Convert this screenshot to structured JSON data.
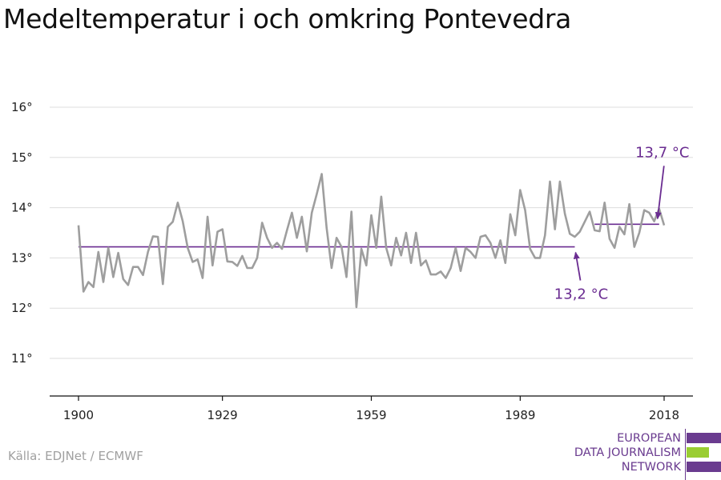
{
  "title": "Medeltemperatur i och omkring Pontevedra",
  "source": "Källa: EDJNet / ECMWF",
  "logo": {
    "lines": [
      "EUROPEAN",
      "DATA JOURNALISM",
      "NETWORK"
    ],
    "colors": {
      "purple": "#6a3b8f",
      "green": "#9acd32"
    }
  },
  "colors": {
    "series": "#9e9e9e",
    "average": "#6a2c91",
    "grid": "#dddddd",
    "axis": "#111111",
    "annotation": "#6a2c91"
  },
  "chart_data": {
    "type": "line",
    "title": "Medeltemperatur i och omkring Pontevedra",
    "xlabel": "",
    "ylabel": "",
    "xlim": [
      1900,
      2018
    ],
    "ylim": [
      10.3,
      16.2
    ],
    "x_ticks": [
      1900,
      1929,
      1959,
      1989,
      2018
    ],
    "y_ticks": [
      11,
      12,
      13,
      14,
      15,
      16
    ],
    "y_tick_labels": [
      "11°",
      "12°",
      "13°",
      "14°",
      "15°",
      "16°"
    ],
    "grid": true,
    "series": [
      {
        "x": [
          1900,
          1901,
          1902,
          1903,
          1904,
          1905,
          1906,
          1907,
          1908,
          1909,
          1910,
          1911,
          1912,
          1913,
          1914,
          1915,
          1916,
          1917,
          1918,
          1919,
          1920,
          1921,
          1922,
          1923,
          1924,
          1925,
          1926,
          1927,
          1928,
          1929,
          1930,
          1931,
          1932,
          1933,
          1934,
          1935,
          1936,
          1937,
          1938,
          1939,
          1940,
          1941,
          1942,
          1943,
          1944,
          1945,
          1946,
          1947,
          1948,
          1949,
          1950,
          1951,
          1952,
          1953,
          1954,
          1955,
          1956,
          1957,
          1958,
          1959,
          1960,
          1961,
          1962,
          1963,
          1964,
          1965,
          1966,
          1967,
          1968,
          1969,
          1970,
          1971,
          1972,
          1973,
          1974,
          1975,
          1976,
          1977,
          1978,
          1979,
          1980,
          1981,
          1982,
          1983,
          1984,
          1985,
          1986,
          1987,
          1988,
          1989,
          1990,
          1991,
          1992,
          1993,
          1994,
          1995,
          1996,
          1997,
          1998,
          1999,
          2000,
          2001,
          2002,
          2003,
          2004,
          2005,
          2006,
          2007,
          2008,
          2009,
          2010,
          2011,
          2012,
          2013,
          2014,
          2015,
          2016,
          2017,
          2018
        ],
        "values": [
          13.65,
          12.33,
          12.52,
          12.42,
          13.12,
          12.52,
          13.2,
          12.62,
          13.1,
          12.58,
          12.46,
          12.82,
          12.82,
          12.66,
          13.12,
          13.43,
          13.42,
          12.48,
          13.62,
          13.72,
          14.1,
          13.73,
          13.2,
          12.92,
          12.97,
          12.6,
          13.82,
          12.85,
          13.52,
          13.57,
          12.93,
          12.92,
          12.84,
          13.04,
          12.8,
          12.8,
          13.0,
          13.7,
          13.4,
          13.2,
          13.3,
          13.18,
          13.55,
          13.9,
          13.4,
          13.82,
          13.13,
          13.9,
          14.27,
          14.67,
          13.6,
          12.8,
          13.4,
          13.22,
          12.62,
          13.92,
          12.02,
          13.18,
          12.85,
          13.85,
          13.2,
          14.22,
          13.2,
          12.85,
          13.4,
          13.05,
          13.5,
          12.9,
          13.5,
          12.85,
          12.95,
          12.67,
          12.67,
          12.73,
          12.6,
          12.8,
          13.2,
          12.74,
          13.2,
          13.12,
          13.0,
          13.42,
          13.45,
          13.3,
          13.0,
          13.35,
          12.9,
          13.87,
          13.45,
          14.35,
          13.95,
          13.18,
          13.0,
          13.0,
          13.45,
          14.52,
          13.57,
          14.52,
          13.88,
          13.48,
          13.42,
          13.52,
          13.72,
          13.92,
          13.55,
          13.53,
          14.1,
          13.38,
          13.2,
          13.62,
          13.47,
          14.07,
          13.22,
          13.5,
          13.95,
          13.9,
          13.73,
          13.98,
          13.65
        ]
      }
    ],
    "reference_lines": [
      {
        "x_start": 1900,
        "x_end": 2000,
        "value": 13.22
      },
      {
        "x_start": 2004,
        "x_end": 2017,
        "value": 13.67
      }
    ],
    "annotations": [
      {
        "label": "13,2 °C",
        "x": 2000,
        "y": 13.22
      },
      {
        "label": "13,7 °C",
        "x": 2017,
        "y": 13.67
      }
    ]
  }
}
